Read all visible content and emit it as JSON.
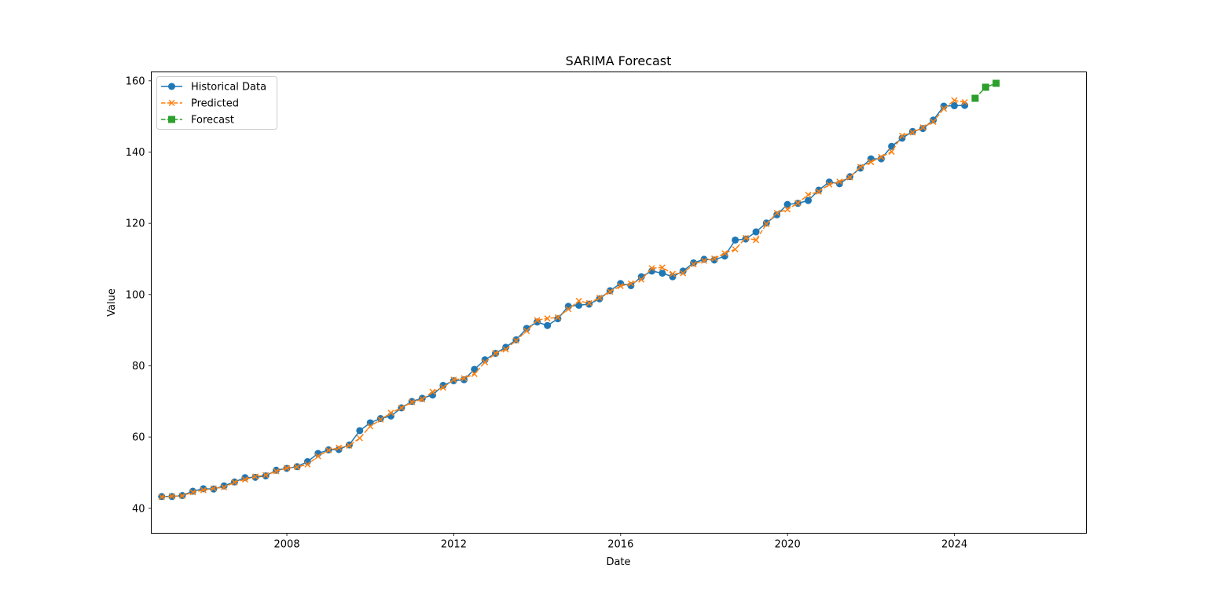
{
  "chart_data": {
    "type": "line",
    "title": "SARIMA Forecast",
    "xlabel": "Date",
    "ylabel": "Value",
    "x_axis_type": "date",
    "xlim": [
      "2004-10-01",
      "2027-03-01"
    ],
    "ylim": [
      33,
      162.5
    ],
    "xticks": [
      "2008",
      "2012",
      "2016",
      "2020",
      "2024"
    ],
    "yticks": [
      40,
      60,
      80,
      100,
      120,
      140,
      160
    ],
    "grid": false,
    "legend_position": "top-left",
    "colors": {
      "historical": "#1f77b4",
      "predicted": "#ff7f0e",
      "forecast": "#2ca02c",
      "axes": "#000000"
    },
    "series": [
      {
        "name": "Historical Data",
        "style": "solid",
        "marker": "circle",
        "points": [
          [
            "2004-12-31",
            43.3
          ],
          [
            "2005-03-31",
            43.3
          ],
          [
            "2005-06-30",
            43.6
          ],
          [
            "2005-09-30",
            44.8
          ],
          [
            "2005-12-31",
            45.5
          ],
          [
            "2006-03-31",
            45.4
          ],
          [
            "2006-06-30",
            46.3
          ],
          [
            "2006-09-30",
            47.4
          ],
          [
            "2006-12-31",
            48.6
          ],
          [
            "2007-03-31",
            48.7
          ],
          [
            "2007-06-30",
            49.1
          ],
          [
            "2007-09-30",
            50.7
          ],
          [
            "2007-12-31",
            51.2
          ],
          [
            "2008-03-31",
            51.7
          ],
          [
            "2008-06-30",
            53.1
          ],
          [
            "2008-09-30",
            55.4
          ],
          [
            "2008-12-31",
            56.4
          ],
          [
            "2009-03-31",
            56.5
          ],
          [
            "2009-06-30",
            57.8
          ],
          [
            "2009-09-30",
            61.8
          ],
          [
            "2009-12-31",
            64.0
          ],
          [
            "2010-03-31",
            65.2
          ],
          [
            "2010-06-30",
            65.9
          ],
          [
            "2010-09-30",
            68.2
          ],
          [
            "2010-12-31",
            70.0
          ],
          [
            "2011-03-31",
            70.9
          ],
          [
            "2011-06-30",
            71.8
          ],
          [
            "2011-09-30",
            74.5
          ],
          [
            "2011-12-31",
            75.8
          ],
          [
            "2012-03-31",
            76.1
          ],
          [
            "2012-06-30",
            79.0
          ],
          [
            "2012-09-30",
            81.7
          ],
          [
            "2012-12-31",
            83.5
          ],
          [
            "2013-03-31",
            85.2
          ],
          [
            "2013-06-30",
            87.3
          ],
          [
            "2013-09-30",
            90.5
          ],
          [
            "2013-12-31",
            92.3
          ],
          [
            "2014-03-31",
            91.3
          ],
          [
            "2014-06-30",
            93.2
          ],
          [
            "2014-09-30",
            96.7
          ],
          [
            "2014-12-31",
            97.0
          ],
          [
            "2015-03-31",
            97.3
          ],
          [
            "2015-06-30",
            98.8
          ],
          [
            "2015-09-30",
            101.1
          ],
          [
            "2015-12-31",
            103.1
          ],
          [
            "2016-03-31",
            102.5
          ],
          [
            "2016-06-30",
            105.0
          ],
          [
            "2016-09-30",
            106.6
          ],
          [
            "2016-12-31",
            106.0
          ],
          [
            "2017-03-31",
            105.0
          ],
          [
            "2017-06-30",
            106.6
          ],
          [
            "2017-09-30",
            108.9
          ],
          [
            "2017-12-31",
            109.9
          ],
          [
            "2018-03-31",
            109.7
          ],
          [
            "2018-06-30",
            110.8
          ],
          [
            "2018-09-30",
            115.3
          ],
          [
            "2018-12-31",
            115.6
          ],
          [
            "2019-03-31",
            117.6
          ],
          [
            "2019-06-30",
            120.1
          ],
          [
            "2019-09-30",
            122.4
          ],
          [
            "2019-12-31",
            125.3
          ],
          [
            "2020-03-31",
            125.6
          ],
          [
            "2020-06-30",
            126.4
          ],
          [
            "2020-09-30",
            129.3
          ],
          [
            "2020-12-31",
            131.6
          ],
          [
            "2021-03-31",
            131.1
          ],
          [
            "2021-06-30",
            133.1
          ],
          [
            "2021-09-30",
            135.5
          ],
          [
            "2021-12-31",
            138.1
          ],
          [
            "2022-03-31",
            138.1
          ],
          [
            "2022-06-30",
            141.6
          ],
          [
            "2022-09-30",
            143.9
          ],
          [
            "2022-12-31",
            145.8
          ],
          [
            "2023-03-31",
            146.6
          ],
          [
            "2023-06-30",
            149.0
          ],
          [
            "2023-09-30",
            152.9
          ],
          [
            "2023-12-31",
            153.0
          ],
          [
            "2024-03-31",
            153.1
          ]
        ]
      },
      {
        "name": "Predicted",
        "style": "dashed",
        "marker": "x",
        "points": [
          [
            "2004-12-31",
            43.2
          ],
          [
            "2005-03-31",
            43.4
          ],
          [
            "2005-06-30",
            43.5
          ],
          [
            "2005-09-30",
            44.5
          ],
          [
            "2005-12-31",
            45.1
          ],
          [
            "2006-03-31",
            45.6
          ],
          [
            "2006-06-30",
            45.9
          ],
          [
            "2006-09-30",
            47.3
          ],
          [
            "2006-12-31",
            48.1
          ],
          [
            "2007-03-31",
            48.9
          ],
          [
            "2007-06-30",
            49.3
          ],
          [
            "2007-09-30",
            50.4
          ],
          [
            "2007-12-31",
            51.3
          ],
          [
            "2008-03-31",
            51.6
          ],
          [
            "2008-06-30",
            52.3
          ],
          [
            "2008-09-30",
            54.6
          ],
          [
            "2008-12-31",
            56.3
          ],
          [
            "2009-03-31",
            57.0
          ],
          [
            "2009-06-30",
            57.6
          ],
          [
            "2009-09-30",
            59.7
          ],
          [
            "2009-12-31",
            63.0
          ],
          [
            "2010-03-31",
            64.9
          ],
          [
            "2010-06-30",
            66.8
          ],
          [
            "2010-09-30",
            68.2
          ],
          [
            "2010-12-31",
            69.8
          ],
          [
            "2011-03-31",
            70.6
          ],
          [
            "2011-06-30",
            72.7
          ],
          [
            "2011-09-30",
            73.9
          ],
          [
            "2011-12-31",
            76.1
          ],
          [
            "2012-03-31",
            76.5
          ],
          [
            "2012-06-30",
            77.7
          ],
          [
            "2012-09-30",
            81.0
          ],
          [
            "2012-12-31",
            83.5
          ],
          [
            "2013-03-31",
            84.6
          ],
          [
            "2013-06-30",
            87.1
          ],
          [
            "2013-09-30",
            89.8
          ],
          [
            "2013-12-31",
            92.8
          ],
          [
            "2014-03-31",
            93.3
          ],
          [
            "2014-06-30",
            93.6
          ],
          [
            "2014-09-30",
            95.9
          ],
          [
            "2014-12-31",
            98.2
          ],
          [
            "2015-03-31",
            97.6
          ],
          [
            "2015-06-30",
            99.1
          ],
          [
            "2015-09-30",
            100.8
          ],
          [
            "2015-12-31",
            102.4
          ],
          [
            "2016-03-31",
            103.1
          ],
          [
            "2016-06-30",
            104.2
          ],
          [
            "2016-09-30",
            107.4
          ],
          [
            "2016-12-31",
            107.6
          ],
          [
            "2017-03-31",
            105.8
          ],
          [
            "2017-06-30",
            106.0
          ],
          [
            "2017-09-30",
            108.5
          ],
          [
            "2017-12-31",
            109.5
          ],
          [
            "2018-03-31",
            110.1
          ],
          [
            "2018-06-30",
            111.6
          ],
          [
            "2018-09-30",
            112.7
          ],
          [
            "2018-12-31",
            115.9
          ],
          [
            "2019-03-31",
            115.3
          ],
          [
            "2019-06-30",
            119.8
          ],
          [
            "2019-09-30",
            122.9
          ],
          [
            "2019-12-31",
            123.9
          ],
          [
            "2020-03-31",
            125.7
          ],
          [
            "2020-06-30",
            128.0
          ],
          [
            "2020-09-30",
            128.9
          ],
          [
            "2020-12-31",
            130.9
          ],
          [
            "2021-03-31",
            131.7
          ],
          [
            "2021-06-30",
            132.9
          ],
          [
            "2021-09-30",
            135.8
          ],
          [
            "2021-12-31",
            137.2
          ],
          [
            "2022-03-31",
            138.6
          ],
          [
            "2022-06-30",
            140.1
          ],
          [
            "2022-09-30",
            144.6
          ],
          [
            "2022-12-31",
            145.5
          ],
          [
            "2023-03-31",
            146.9
          ],
          [
            "2023-06-30",
            148.5
          ],
          [
            "2023-09-30",
            152.2
          ],
          [
            "2023-12-31",
            154.5
          ],
          [
            "2024-03-31",
            154.0
          ]
        ]
      },
      {
        "name": "Forecast",
        "style": "dashed",
        "marker": "square",
        "points": [
          [
            "2024-06-30",
            155.1
          ],
          [
            "2024-09-30",
            158.2
          ],
          [
            "2024-12-31",
            159.3
          ]
        ]
      }
    ]
  }
}
